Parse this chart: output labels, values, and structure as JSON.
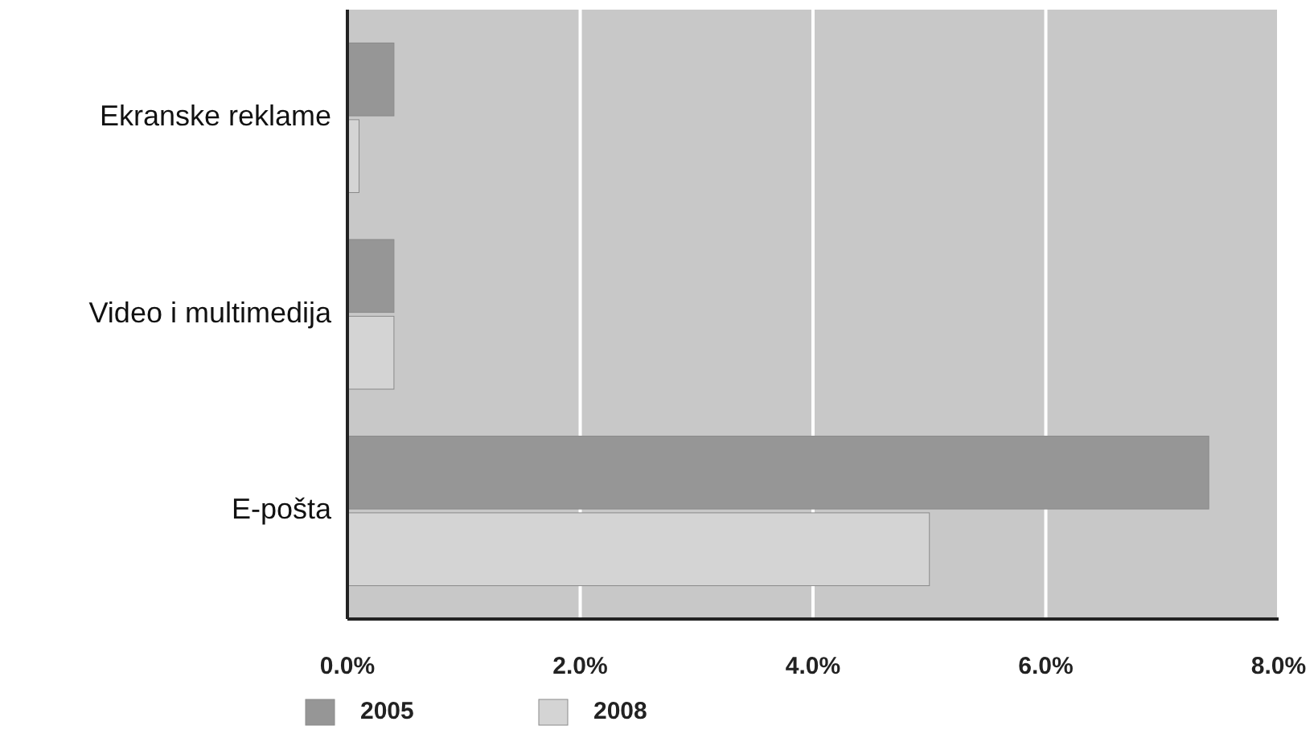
{
  "chart_data": {
    "type": "bar",
    "orientation": "horizontal",
    "categories": [
      "Ekranske reklame",
      "Video i multimedija",
      "E-pošta"
    ],
    "series": [
      {
        "name": "2005",
        "color": "#969696",
        "values": [
          0.4,
          0.4,
          7.4
        ]
      },
      {
        "name": "2008",
        "color": "#d4d4d4",
        "values": [
          0.1,
          0.4,
          5.0
        ]
      }
    ],
    "xlim": [
      0,
      8
    ],
    "xticks": [
      {
        "value": 0,
        "label": "0.0%"
      },
      {
        "value": 2,
        "label": "2.0%"
      },
      {
        "value": 4,
        "label": "4.0%"
      },
      {
        "value": 6,
        "label": "6.0%"
      },
      {
        "value": 8,
        "label": "8.0%"
      }
    ],
    "grid": "x",
    "legend": "bottom left"
  }
}
